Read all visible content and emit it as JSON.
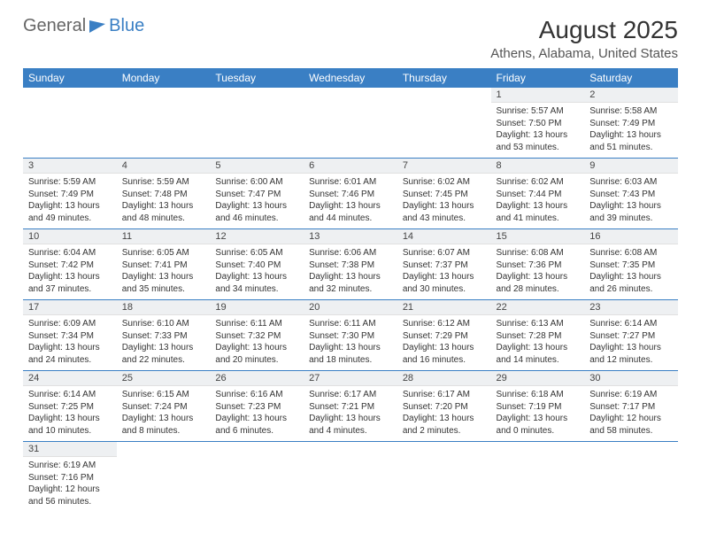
{
  "logo": {
    "general": "General",
    "blue": "Blue"
  },
  "title": "August 2025",
  "location": "Athens, Alabama, United States",
  "colors": {
    "accent": "#3a7fc4",
    "daybg": "#eef0f2",
    "text": "#333"
  },
  "weekdays": [
    "Sunday",
    "Monday",
    "Tuesday",
    "Wednesday",
    "Thursday",
    "Friday",
    "Saturday"
  ],
  "firstDayOffset": 5,
  "days": [
    {
      "n": 1,
      "sunrise": "5:57 AM",
      "sunset": "7:50 PM",
      "daylight": "13 hours and 53 minutes."
    },
    {
      "n": 2,
      "sunrise": "5:58 AM",
      "sunset": "7:49 PM",
      "daylight": "13 hours and 51 minutes."
    },
    {
      "n": 3,
      "sunrise": "5:59 AM",
      "sunset": "7:49 PM",
      "daylight": "13 hours and 49 minutes."
    },
    {
      "n": 4,
      "sunrise": "5:59 AM",
      "sunset": "7:48 PM",
      "daylight": "13 hours and 48 minutes."
    },
    {
      "n": 5,
      "sunrise": "6:00 AM",
      "sunset": "7:47 PM",
      "daylight": "13 hours and 46 minutes."
    },
    {
      "n": 6,
      "sunrise": "6:01 AM",
      "sunset": "7:46 PM",
      "daylight": "13 hours and 44 minutes."
    },
    {
      "n": 7,
      "sunrise": "6:02 AM",
      "sunset": "7:45 PM",
      "daylight": "13 hours and 43 minutes."
    },
    {
      "n": 8,
      "sunrise": "6:02 AM",
      "sunset": "7:44 PM",
      "daylight": "13 hours and 41 minutes."
    },
    {
      "n": 9,
      "sunrise": "6:03 AM",
      "sunset": "7:43 PM",
      "daylight": "13 hours and 39 minutes."
    },
    {
      "n": 10,
      "sunrise": "6:04 AM",
      "sunset": "7:42 PM",
      "daylight": "13 hours and 37 minutes."
    },
    {
      "n": 11,
      "sunrise": "6:05 AM",
      "sunset": "7:41 PM",
      "daylight": "13 hours and 35 minutes."
    },
    {
      "n": 12,
      "sunrise": "6:05 AM",
      "sunset": "7:40 PM",
      "daylight": "13 hours and 34 minutes."
    },
    {
      "n": 13,
      "sunrise": "6:06 AM",
      "sunset": "7:38 PM",
      "daylight": "13 hours and 32 minutes."
    },
    {
      "n": 14,
      "sunrise": "6:07 AM",
      "sunset": "7:37 PM",
      "daylight": "13 hours and 30 minutes."
    },
    {
      "n": 15,
      "sunrise": "6:08 AM",
      "sunset": "7:36 PM",
      "daylight": "13 hours and 28 minutes."
    },
    {
      "n": 16,
      "sunrise": "6:08 AM",
      "sunset": "7:35 PM",
      "daylight": "13 hours and 26 minutes."
    },
    {
      "n": 17,
      "sunrise": "6:09 AM",
      "sunset": "7:34 PM",
      "daylight": "13 hours and 24 minutes."
    },
    {
      "n": 18,
      "sunrise": "6:10 AM",
      "sunset": "7:33 PM",
      "daylight": "13 hours and 22 minutes."
    },
    {
      "n": 19,
      "sunrise": "6:11 AM",
      "sunset": "7:32 PM",
      "daylight": "13 hours and 20 minutes."
    },
    {
      "n": 20,
      "sunrise": "6:11 AM",
      "sunset": "7:30 PM",
      "daylight": "13 hours and 18 minutes."
    },
    {
      "n": 21,
      "sunrise": "6:12 AM",
      "sunset": "7:29 PM",
      "daylight": "13 hours and 16 minutes."
    },
    {
      "n": 22,
      "sunrise": "6:13 AM",
      "sunset": "7:28 PM",
      "daylight": "13 hours and 14 minutes."
    },
    {
      "n": 23,
      "sunrise": "6:14 AM",
      "sunset": "7:27 PM",
      "daylight": "13 hours and 12 minutes."
    },
    {
      "n": 24,
      "sunrise": "6:14 AM",
      "sunset": "7:25 PM",
      "daylight": "13 hours and 10 minutes."
    },
    {
      "n": 25,
      "sunrise": "6:15 AM",
      "sunset": "7:24 PM",
      "daylight": "13 hours and 8 minutes."
    },
    {
      "n": 26,
      "sunrise": "6:16 AM",
      "sunset": "7:23 PM",
      "daylight": "13 hours and 6 minutes."
    },
    {
      "n": 27,
      "sunrise": "6:17 AM",
      "sunset": "7:21 PM",
      "daylight": "13 hours and 4 minutes."
    },
    {
      "n": 28,
      "sunrise": "6:17 AM",
      "sunset": "7:20 PM",
      "daylight": "13 hours and 2 minutes."
    },
    {
      "n": 29,
      "sunrise": "6:18 AM",
      "sunset": "7:19 PM",
      "daylight": "13 hours and 0 minutes."
    },
    {
      "n": 30,
      "sunrise": "6:19 AM",
      "sunset": "7:17 PM",
      "daylight": "12 hours and 58 minutes."
    },
    {
      "n": 31,
      "sunrise": "6:19 AM",
      "sunset": "7:16 PM",
      "daylight": "12 hours and 56 minutes."
    }
  ],
  "labels": {
    "sunrise": "Sunrise:",
    "sunset": "Sunset:",
    "daylight": "Daylight:"
  }
}
